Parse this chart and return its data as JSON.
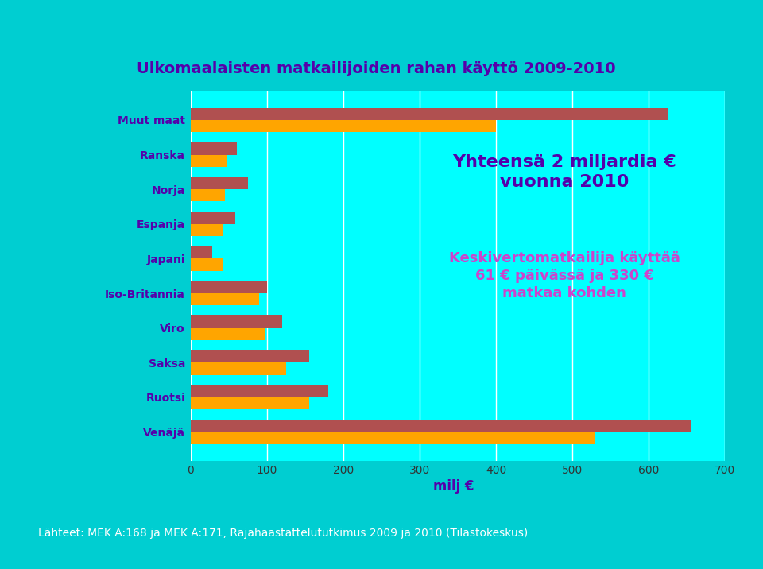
{
  "title": "Ulkomaalaisten matkailijoiden rahan käyttö 2009-2010",
  "categories": [
    "Venäjä",
    "Ruotsi",
    "Saksa",
    "Viro",
    "Iso-Britannia",
    "Japani",
    "Espanja",
    "Norja",
    "Ranska",
    "Muut maat"
  ],
  "values_2010": [
    655,
    180,
    155,
    120,
    100,
    28,
    58,
    75,
    60,
    625
  ],
  "values_2009": [
    530,
    155,
    125,
    98,
    90,
    43,
    43,
    45,
    48,
    400
  ],
  "color_2010": "#b05050",
  "color_2009": "#FFA500",
  "bg_color_outer": "#00CED1",
  "bg_color_panel": "#FFFFFF",
  "bg_color_chart": "#00FFFF",
  "title_color": "#5500AA",
  "label_color": "#5500AA",
  "tick_color": "#333333",
  "xlabel": "milj €",
  "xlim": [
    0,
    700
  ],
  "xticks": [
    0,
    100,
    200,
    300,
    400,
    500,
    600,
    700
  ],
  "annotation1_text": "Yhteensä 2 miljardia €\nvuonna 2010",
  "annotation2_text": "Keskivertomatkailija käyttää\n61 € päivässä ja 330 €\nmatkaa kohden",
  "annotation1_color": "#5500AA",
  "annotation2_color": "#CC44CC",
  "footer_text": "Lähteet: MEK A:168 ja MEK A:171, Rajahaastattelututkimus 2009 ja 2010 (Tilastokeskus)",
  "footer_color": "white",
  "footer_bg": "#1a6ec8"
}
